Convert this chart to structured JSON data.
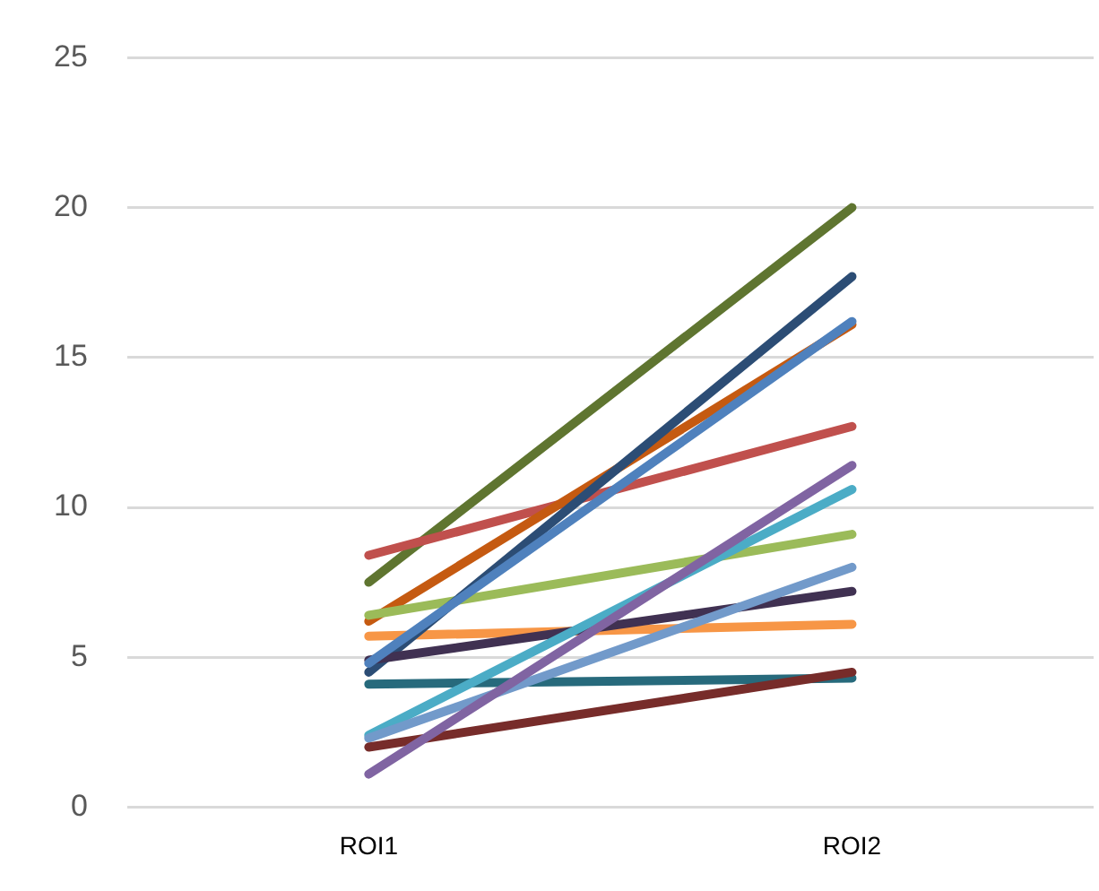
{
  "chart_data": {
    "type": "line",
    "categories": [
      "ROI1",
      "ROI2"
    ],
    "series": [
      {
        "color": "#8064a2",
        "values": [
          1.1,
          11.4
        ]
      },
      {
        "color": "#772c2a",
        "values": [
          2.0,
          4.5
        ]
      },
      {
        "color": "#729aca",
        "values": [
          2.3,
          8.0
        ]
      },
      {
        "color": "#4bacc6",
        "values": [
          2.4,
          10.6
        ]
      },
      {
        "color": "#276a7c",
        "values": [
          4.1,
          4.3
        ]
      },
      {
        "color": "#4f81bd",
        "values": [
          4.8,
          16.2
        ]
      },
      {
        "color": "#403152",
        "values": [
          4.9,
          7.2
        ]
      },
      {
        "color": "#2c4d75",
        "values": [
          4.5,
          17.7
        ]
      },
      {
        "color": "#f79646",
        "values": [
          5.7,
          6.1
        ]
      },
      {
        "color": "#9bbb59",
        "values": [
          6.4,
          9.1
        ]
      },
      {
        "color": "#c55a11",
        "values": [
          6.2,
          16.1
        ]
      },
      {
        "color": "#c0504d",
        "values": [
          8.4,
          12.7
        ]
      },
      {
        "color": "#5f7530",
        "values": [
          7.5,
          20.0
        ]
      }
    ],
    "ylim": [
      0,
      25
    ],
    "yticks": [
      0,
      5,
      10,
      15,
      20,
      25
    ],
    "grid": "y"
  }
}
